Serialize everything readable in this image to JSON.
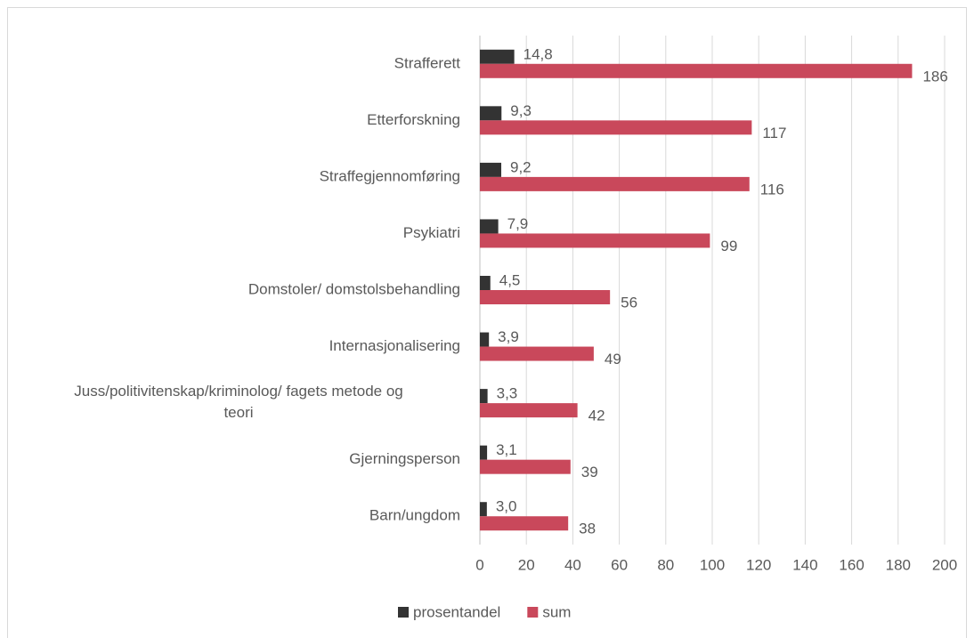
{
  "chart_data": {
    "type": "bar",
    "orientation": "horizontal",
    "categories": [
      "Strafferett",
      "Etterforskning",
      "Straffegjennomføring",
      "Psykiatri",
      "Domstoler/ domstolsbehandling",
      "Internasjonalisering",
      "Juss/politivitenskap/kriminolog/ fagets metode og teori",
      "Gjerningsperson",
      "Barn/ungdom"
    ],
    "series": [
      {
        "name": "prosentandel",
        "color": "#333333",
        "values": [
          14.8,
          9.3,
          9.2,
          7.9,
          4.5,
          3.9,
          3.3,
          3.1,
          3.0
        ],
        "value_labels": [
          "14,8",
          "9,3",
          "9,2",
          "7,9",
          "4,5",
          "3,9",
          "3,3",
          "3,1",
          "3,0"
        ]
      },
      {
        "name": "sum",
        "color": "#c9485b",
        "values": [
          186,
          117,
          116,
          99,
          56,
          49,
          42,
          39,
          38
        ]
      }
    ],
    "xlim": [
      0,
      200
    ],
    "xticks": [
      0,
      20,
      40,
      60,
      80,
      100,
      120,
      140,
      160,
      180,
      200
    ],
    "grid": true,
    "legend": "bottom"
  }
}
